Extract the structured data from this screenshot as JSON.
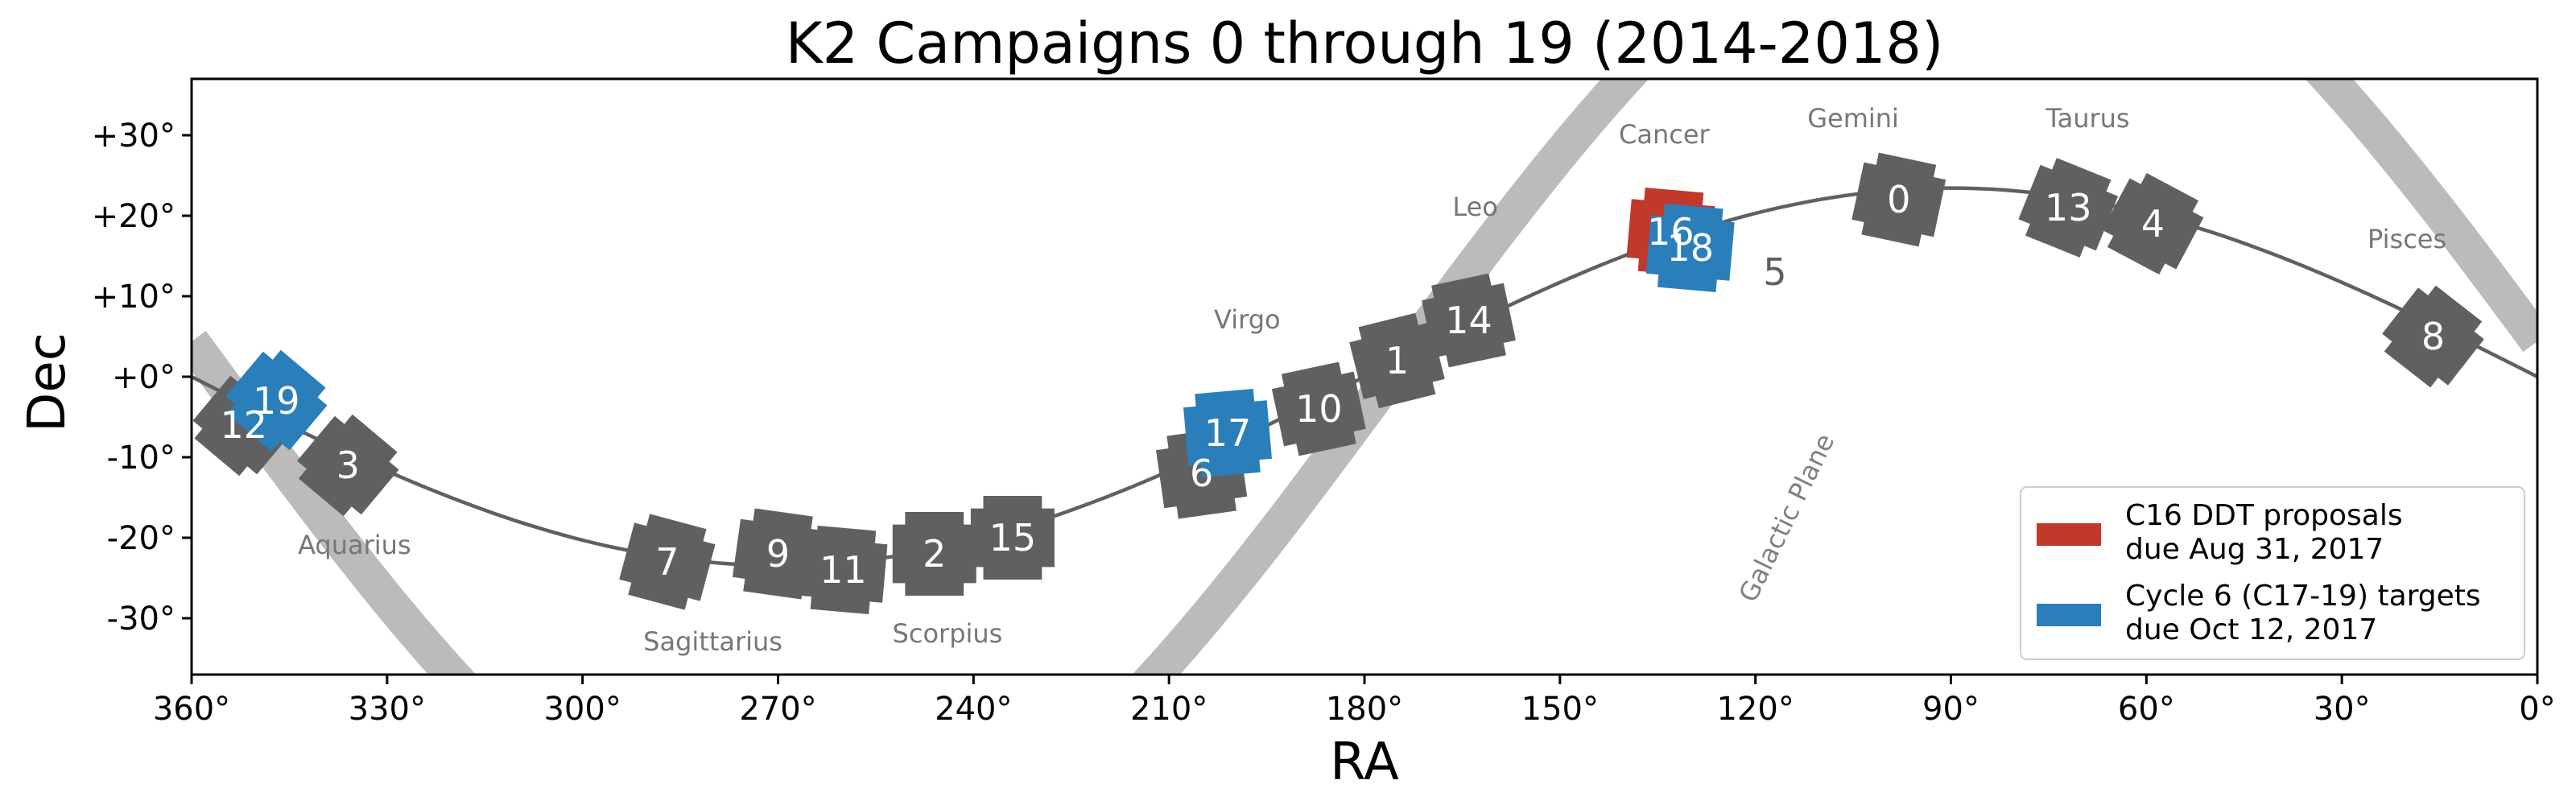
{
  "chart_data": {
    "type": "scatter",
    "title": "K2 Campaigns 0 through 19 (2014-2018)",
    "xlabel": "RA",
    "ylabel": "Dec",
    "xlim": [
      360,
      0
    ],
    "ylim": [
      -37,
      37
    ],
    "x_ticks": [
      360,
      330,
      300,
      270,
      240,
      210,
      180,
      150,
      120,
      90,
      60,
      30,
      0
    ],
    "x_tick_labels": [
      "360°",
      "330°",
      "300°",
      "270°",
      "240°",
      "210°",
      "180°",
      "150°",
      "120°",
      "90°",
      "60°",
      "30°",
      "0°"
    ],
    "y_ticks": [
      30,
      20,
      10,
      0,
      -10,
      -20,
      -30
    ],
    "y_tick_labels": [
      "+30°",
      "+20°",
      "+10°",
      "+0°",
      "-10°",
      "-20°",
      "-30°"
    ],
    "grid": false,
    "legend_position": "bottom-right",
    "ecliptic_color": "#606060",
    "galactic_plane_color": "#bbbbbb",
    "galactic_plane_label": "Galactic Plane",
    "colors": {
      "default": "#606060",
      "ddt": "#c0392b",
      "cycle6": "#2a7fba"
    },
    "legend": [
      {
        "color": "#c0392b",
        "lines": [
          "C16 DDT proposals",
          "due Aug 31, 2017"
        ]
      },
      {
        "color": "#2a7fba",
        "lines": [
          "Cycle 6 (C17-19) targets",
          "due Oct 12, 2017"
        ]
      }
    ],
    "campaigns": [
      {
        "label": "12",
        "ra": 352,
        "dec": -6,
        "group": "default",
        "angle": 40
      },
      {
        "label": "3",
        "ra": 336,
        "dec": -11,
        "group": "default",
        "angle": 40
      },
      {
        "label": "7",
        "ra": 287,
        "dec": -23,
        "group": "default",
        "angle": 15
      },
      {
        "label": "9",
        "ra": 270,
        "dec": -22,
        "group": "default",
        "angle": 8
      },
      {
        "label": "11",
        "ra": 260,
        "dec": -24,
        "group": "default",
        "angle": 5
      },
      {
        "label": "2",
        "ra": 246,
        "dec": -22,
        "group": "default",
        "angle": 0
      },
      {
        "label": "15",
        "ra": 234,
        "dec": -20,
        "group": "default",
        "angle": 0
      },
      {
        "label": "6",
        "ra": 205,
        "dec": -12,
        "group": "default",
        "angle": -8
      },
      {
        "label": "10",
        "ra": 187,
        "dec": -4,
        "group": "default",
        "angle": -12
      },
      {
        "label": "1",
        "ra": 175,
        "dec": 2,
        "group": "default",
        "angle": -14
      },
      {
        "label": "14",
        "ra": 164,
        "dec": 7,
        "group": "default",
        "angle": -12
      },
      {
        "label": "0",
        "ra": 98,
        "dec": 22,
        "group": "default",
        "angle": 12
      },
      {
        "label": "13",
        "ra": 72,
        "dec": 21,
        "group": "default",
        "angle": 22
      },
      {
        "label": "4",
        "ra": 59,
        "dec": 19,
        "group": "default",
        "angle": 28
      },
      {
        "label": "8",
        "ra": 16,
        "dec": 5,
        "group": "default",
        "angle": 38
      },
      {
        "label": "16",
        "ra": 133,
        "dec": 18,
        "group": "ddt",
        "angle": 5
      },
      {
        "label": "17",
        "ra": 201,
        "dec": -7,
        "group": "cycle6",
        "angle": -5
      },
      {
        "label": "18",
        "ra": 130,
        "dec": 16,
        "group": "cycle6",
        "angle": 5
      },
      {
        "label": "19",
        "ra": 347,
        "dec": -3,
        "group": "cycle6",
        "angle": 40
      }
    ],
    "off_field_labels": [
      {
        "label": "5",
        "ra": 117,
        "dec": 13
      }
    ],
    "constellations": [
      {
        "name": "Aquarius",
        "ra": 335,
        "dec": -22
      },
      {
        "name": "Sagittarius",
        "ra": 280,
        "dec": -34
      },
      {
        "name": "Scorpius",
        "ra": 244,
        "dec": -33
      },
      {
        "name": "Virgo",
        "ra": 198,
        "dec": 6
      },
      {
        "name": "Leo",
        "ra": 163,
        "dec": 20
      },
      {
        "name": "Cancer",
        "ra": 134,
        "dec": 29
      },
      {
        "name": "Gemini",
        "ra": 105,
        "dec": 31
      },
      {
        "name": "Taurus",
        "ra": 69,
        "dec": 31
      },
      {
        "name": "Pisces",
        "ra": 20,
        "dec": 16
      }
    ]
  }
}
